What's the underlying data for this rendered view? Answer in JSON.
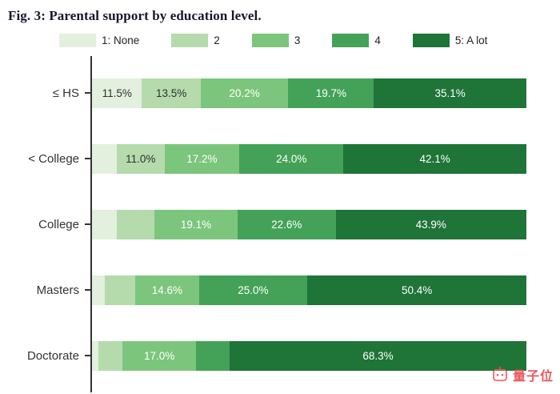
{
  "title": "Fig. 3: Parental support by education level.",
  "legend": {
    "items": [
      {
        "label": "1: None",
        "color": "#e3f0dd"
      },
      {
        "label": "2",
        "color": "#b5dbad"
      },
      {
        "label": "3",
        "color": "#7cc57d"
      },
      {
        "label": "4",
        "color": "#44a258"
      },
      {
        "label": "5: A lot",
        "color": "#1f7438"
      }
    ]
  },
  "chart_data": {
    "type": "bar",
    "stacked": true,
    "orientation": "horizontal",
    "unit": "%",
    "title": "Fig. 3: Parental support by education level.",
    "categories": [
      "≤ HS",
      "< College",
      "College",
      "Masters",
      "Doctorate"
    ],
    "series": [
      {
        "name": "1: None",
        "color": "#e3f0dd",
        "label_color": "#2f2f2f",
        "values": [
          11.5,
          5.7,
          5.8,
          3.0,
          1.5
        ]
      },
      {
        "name": "2",
        "color": "#b5dbad",
        "label_color": "#2f2f2f",
        "values": [
          13.5,
          11.0,
          8.6,
          7.0,
          5.5
        ]
      },
      {
        "name": "3",
        "color": "#7cc57d",
        "label_color": "#ffffff",
        "values": [
          20.2,
          17.2,
          19.1,
          14.6,
          17.0
        ]
      },
      {
        "name": "4",
        "color": "#44a258",
        "label_color": "#ffffff",
        "values": [
          19.7,
          24.0,
          22.6,
          25.0,
          7.7
        ]
      },
      {
        "name": "5: A lot",
        "color": "#1f7438",
        "label_color": "#ffffff",
        "values": [
          35.1,
          42.1,
          43.9,
          50.4,
          68.3
        ]
      }
    ],
    "label_format": "{value}%",
    "label_min_value": 10,
    "xlim": [
      0,
      100
    ],
    "legend_position": "top",
    "axis_color": "#333333"
  },
  "watermark": {
    "text": "量子位",
    "color": "#e8585c"
  }
}
